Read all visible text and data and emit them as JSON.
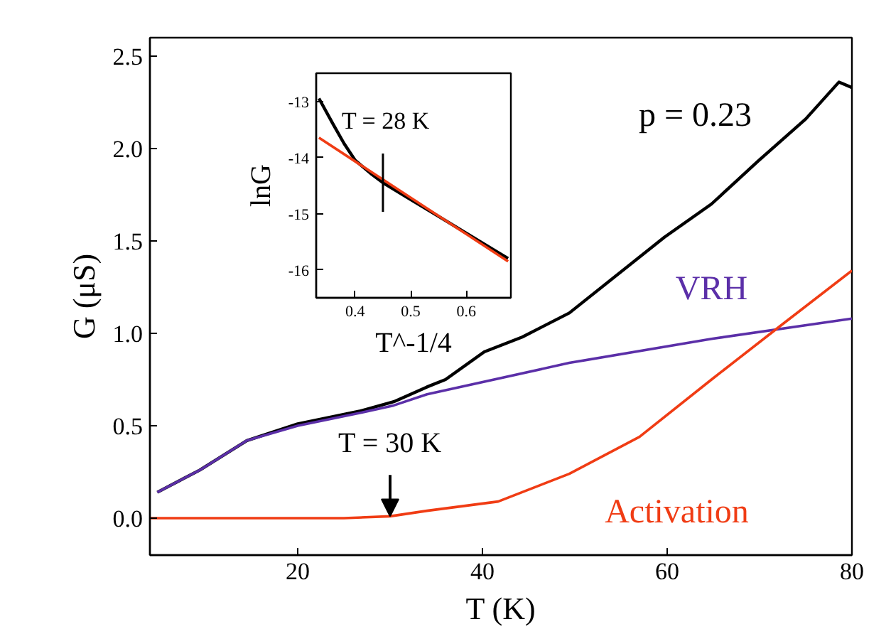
{
  "chart_data": [
    {
      "type": "line",
      "xlabel": "T (K)",
      "ylabel": "G (μS)",
      "xlim": [
        4,
        80
      ],
      "ylim": [
        -0.2,
        2.6
      ],
      "xticks": [
        20,
        40,
        60,
        80
      ],
      "yticks": [
        {
          "value": 0,
          "label": "0.0"
        },
        {
          "value": 0.5,
          "label": "0.5"
        },
        {
          "value": 1,
          "label": "1.0"
        },
        {
          "value": 1.5,
          "label": "1.5"
        },
        {
          "value": 2,
          "label": "2.0"
        },
        {
          "value": 2.5,
          "label": "2.5"
        }
      ],
      "grid": false,
      "annotations": [
        "p = 0.23",
        {
          "text": "T = 30 K",
          "x": 30,
          "y": 0.01
        }
      ],
      "series": [
        {
          "color": "#000000",
          "x": [
            4.8,
            9.4,
            14.5,
            20,
            26.8,
            30.4,
            34,
            36,
            40.2,
            44.3,
            49.4,
            59.7,
            64.8,
            69.8,
            75,
            78.6,
            80
          ],
          "values": [
            0.14,
            0.26,
            0.42,
            0.51,
            0.58,
            0.63,
            0.71,
            0.75,
            0.9,
            0.98,
            1.11,
            1.52,
            1.7,
            1.93,
            2.16,
            2.36,
            2.33
          ]
        },
        {
          "name": "VRH",
          "color": "#5b2fa8",
          "x": [
            4.8,
            9.4,
            14.5,
            20,
            26.8,
            30.4,
            34,
            49.4,
            64.8,
            80
          ],
          "values": [
            0.14,
            0.26,
            0.42,
            0.5,
            0.57,
            0.61,
            0.67,
            0.84,
            0.97,
            1.08
          ]
        },
        {
          "name": "Activation",
          "color": "#f03c14",
          "x": [
            4,
            15,
            25,
            30,
            34,
            41.7,
            49.4,
            57,
            64.8,
            72.5,
            80
          ],
          "values": [
            0,
            0,
            0,
            0.01,
            0.04,
            0.09,
            0.24,
            0.44,
            0.75,
            1.05,
            1.34
          ]
        }
      ]
    },
    {
      "type": "line",
      "xlabel": "T^-1/4",
      "ylabel": "lnG",
      "xlim": [
        0.33,
        0.68
      ],
      "ylim": [
        -16.5,
        -12.5
      ],
      "xticks": [
        0.4,
        0.5,
        0.6
      ],
      "yticks": [
        -13,
        -14,
        -15,
        -16
      ],
      "grid": false,
      "annotations": [
        {
          "text": "T = 28 K",
          "x": 0.45,
          "y": -14.45
        }
      ],
      "series": [
        {
          "color": "#000000",
          "x": [
            0.335,
            0.36,
            0.38,
            0.4,
            0.43,
            0.45,
            0.5,
            0.55,
            0.6,
            0.65,
            0.675
          ],
          "values": [
            -12.95,
            -13.4,
            -13.75,
            -14.05,
            -14.3,
            -14.45,
            -14.75,
            -15.05,
            -15.35,
            -15.65,
            -15.8
          ]
        },
        {
          "color": "#f03c14",
          "x": [
            0.335,
            0.675
          ],
          "values": [
            -13.65,
            -15.85
          ]
        }
      ]
    }
  ]
}
